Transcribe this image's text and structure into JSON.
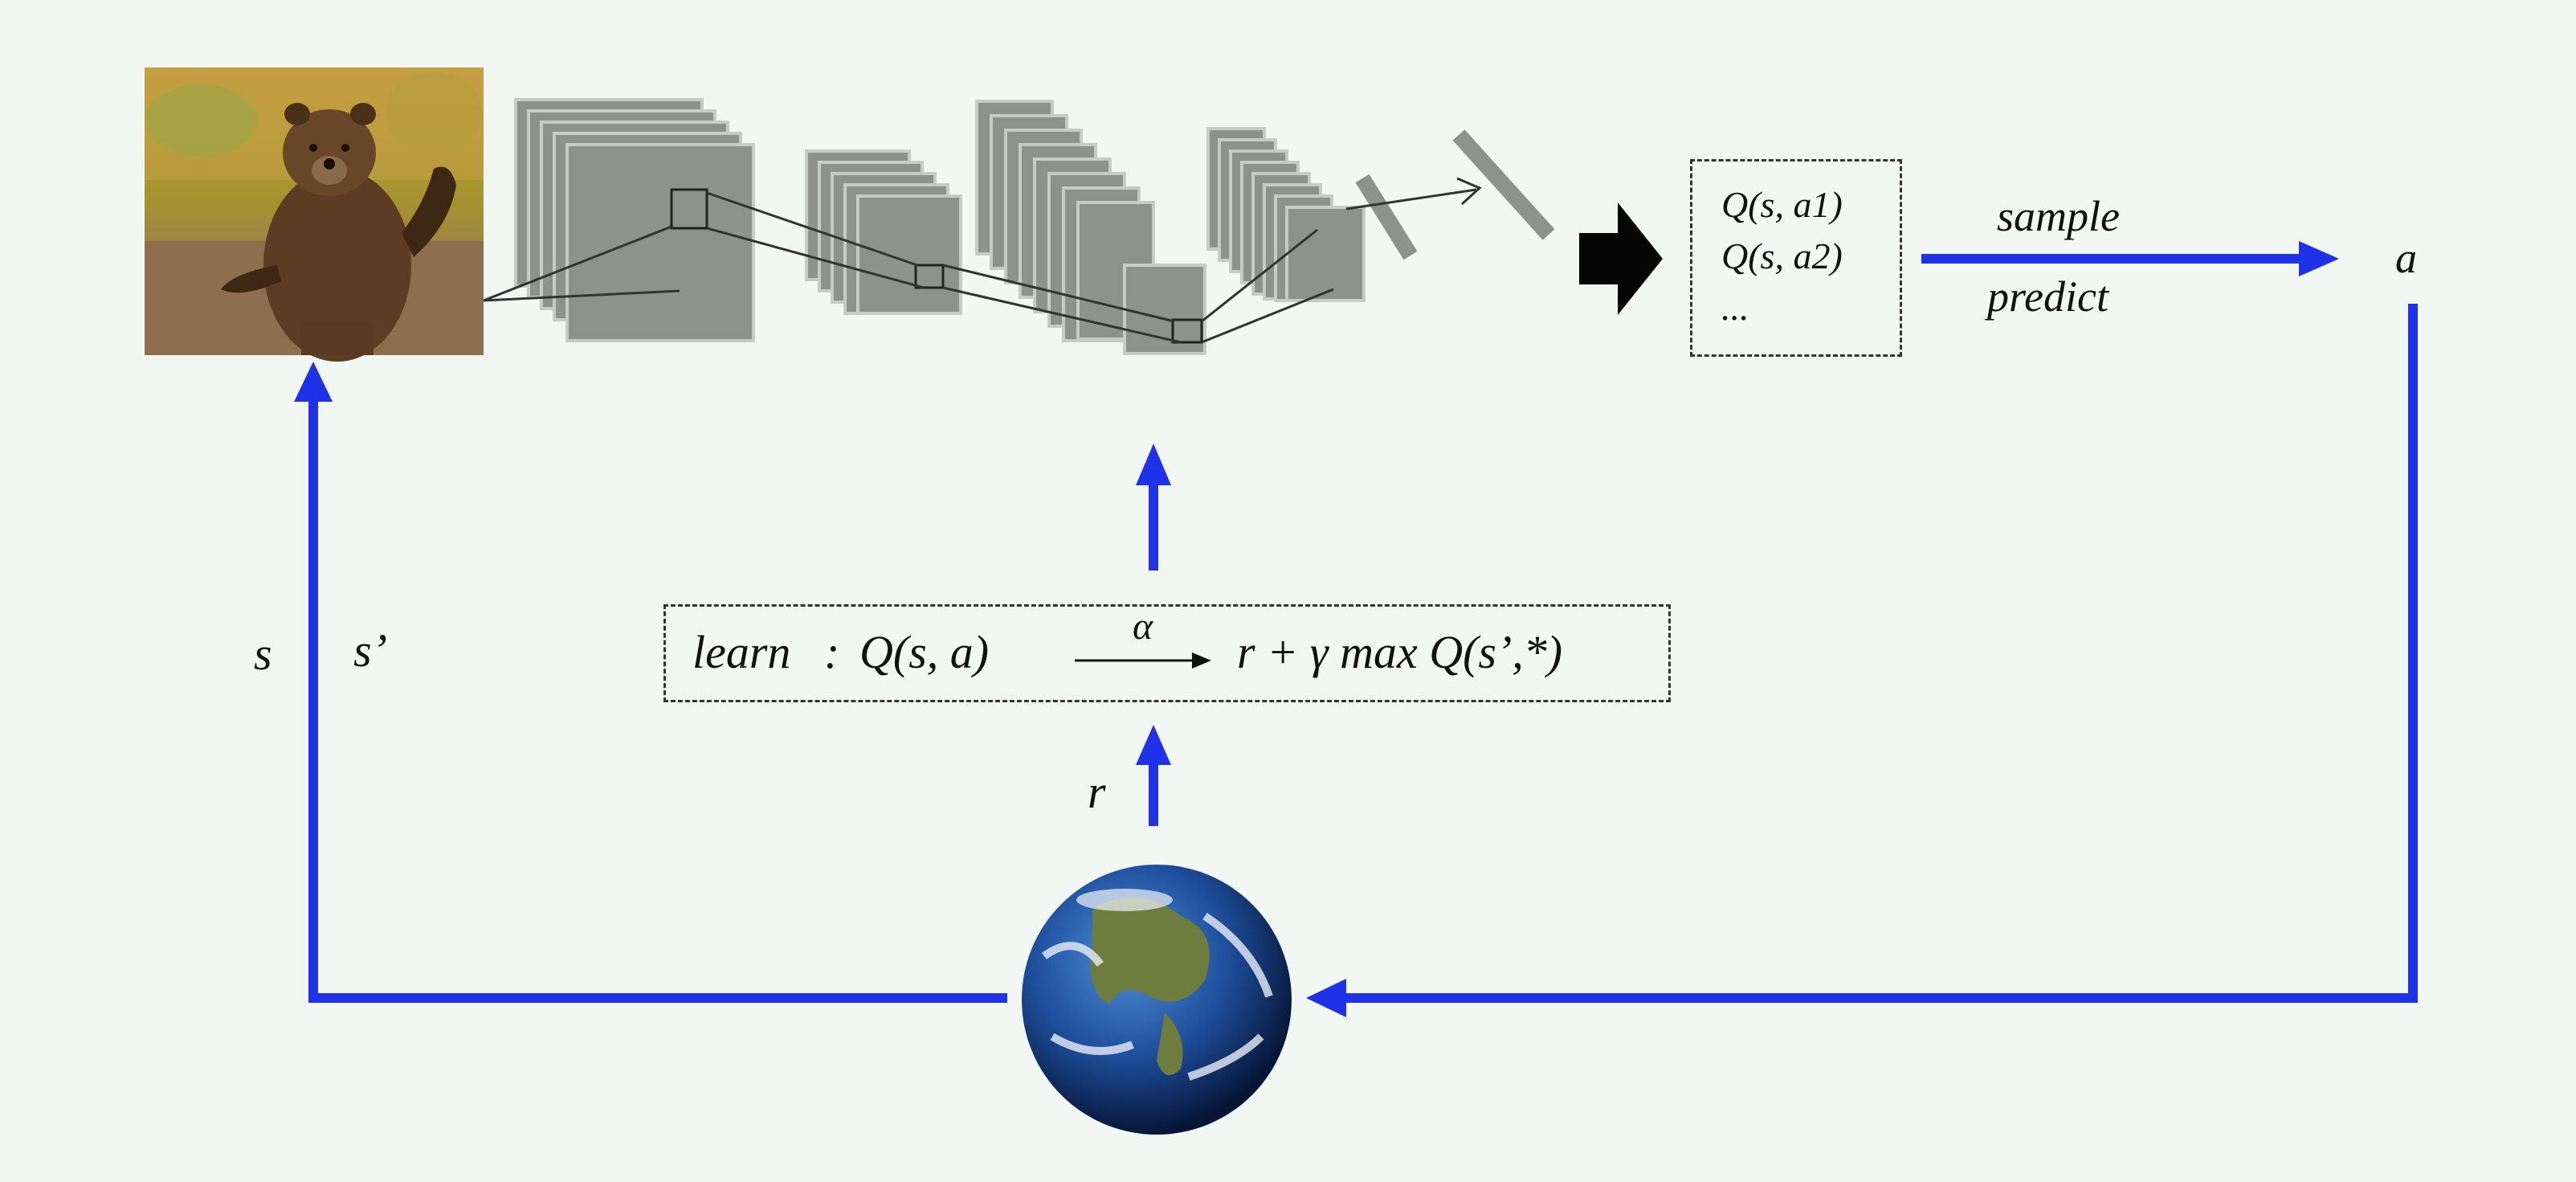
{
  "q_box": {
    "line1": "Q(s, a1)",
    "line2": "Q(s, a2)",
    "line3": "..."
  },
  "action_labels": {
    "sample": "sample",
    "predict": "predict",
    "action": "a"
  },
  "learn_box": {
    "learn": "learn",
    "colon": ":",
    "q": "Q(s, a)",
    "alpha": "α",
    "target": "r + γ max Q(s’,*)"
  },
  "state_labels": {
    "s": "s",
    "s_prime": "s’"
  },
  "reward_label": "r",
  "colors": {
    "arrow_blue": "#1f32e8",
    "layer_gray": "#8e918e",
    "background": "#f3f7f3"
  },
  "icons": [
    "bear-photo",
    "earth-globe",
    "cnn-network",
    "big-arrow-icon"
  ]
}
